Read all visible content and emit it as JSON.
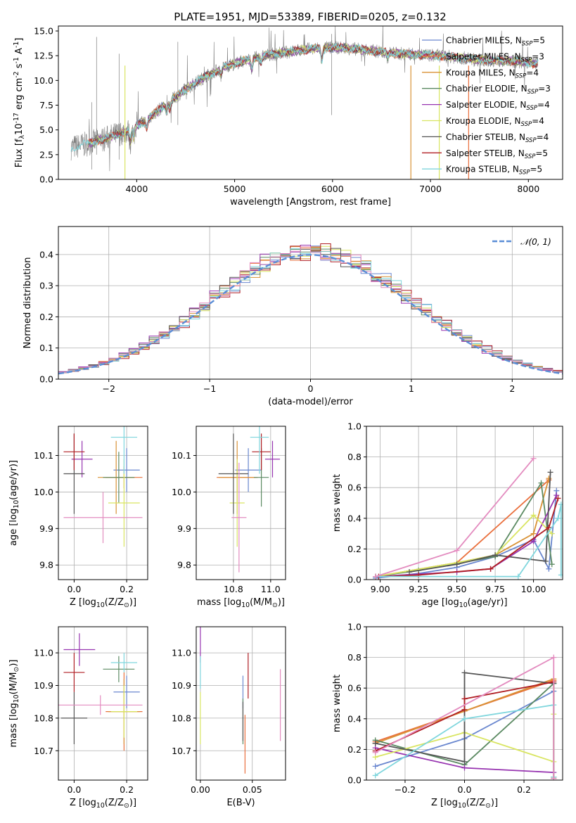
{
  "title": "PLATE=1951, MJD=53389, FIBERID=0205, z=0.132",
  "series": [
    {
      "name": "Chabrier MILES, N$_{SSP}$=5",
      "label": "Chabrier MILES, N",
      "ssp": "5",
      "color": "#6a87cf"
    },
    {
      "name": "Salpeter MILES, N$_{SSP}$=3",
      "label": "Salpeter MILES, N",
      "ssp": "3",
      "color": "#ea6f3c"
    },
    {
      "name": "Kroupa MILES, N$_{SSP}$=4",
      "label": "Kroupa MILES, N",
      "ssp": "4",
      "color": "#d99236"
    },
    {
      "name": "Chabrier ELODIE, N$_{SSP}$=3",
      "label": "Chabrier ELODIE, N",
      "ssp": "3",
      "color": "#5b8a62"
    },
    {
      "name": "Salpeter ELODIE, N$_{SSP}$=4",
      "label": "Salpeter ELODIE, N",
      "ssp": "4",
      "color": "#9734b0"
    },
    {
      "name": "Kroupa ELODIE, N$_{SSP}$=4",
      "label": "Kroupa ELODIE, N",
      "ssp": "4",
      "color": "#d9e562"
    },
    {
      "name": "Chabrier STELIB, N$_{SSP}$=4",
      "label": "Chabrier STELIB, N",
      "ssp": "4",
      "color": "#555555"
    },
    {
      "name": "Salpeter STELIB, N$_{SSP}$=5",
      "label": "Salpeter STELIB, N",
      "ssp": "5",
      "color": "#b01e23"
    },
    {
      "name": "Kroupa STELIB, N$_{SSP}$=5",
      "label": "Kroupa STELIB, N",
      "ssp": "5",
      "color": "#7fd6dd"
    }
  ],
  "extra_color": "#e38bbf",
  "chart_data": [
    {
      "type": "line",
      "panel": "spectrum",
      "xlabel": "wavelength [Angstrom, rest frame]",
      "ylabel": "Flux [f$_\\lambda$10$^{-17}$ erg cm$^{-2}$ s$^{-1}$ A$^{-1}$]",
      "xlim": [
        3200,
        8350
      ],
      "ylim": [
        0,
        15.5
      ],
      "xticks": [
        4000,
        5000,
        6000,
        7000,
        8000
      ],
      "yticks": [
        0,
        2.5,
        5,
        7.5,
        10,
        12.5,
        15
      ],
      "yticklabels": [
        "0.0",
        "2.5",
        "5.0",
        "7.5",
        "10.0",
        "12.5",
        "15.0"
      ],
      "continuum_x": [
        3330,
        3500,
        3700,
        3900,
        4100,
        4300,
        4500,
        4700,
        4900,
        5100,
        5300,
        5500,
        5700,
        5900,
        6100,
        6300,
        6500,
        6700,
        6900,
        7100,
        7300,
        7500,
        7700,
        7900,
        8100
      ],
      "continuum_y": [
        3.2,
        3.6,
        4.2,
        4.9,
        6.0,
        7.6,
        9.1,
        10.4,
        11.4,
        12.0,
        12.5,
        12.8,
        13.1,
        13.3,
        13.3,
        13.1,
        12.9,
        12.7,
        12.6,
        12.5,
        12.3,
        12.1,
        12.0,
        11.9,
        11.7
      ],
      "absorption_lines": [
        {
          "x": 3934,
          "depth": 1.5
        },
        {
          "x": 3969,
          "depth": 1.3
        },
        {
          "x": 4102,
          "depth": 0.9
        },
        {
          "x": 4305,
          "depth": 1.0
        },
        {
          "x": 4340,
          "depth": 0.8
        },
        {
          "x": 4861,
          "depth": 0.7
        },
        {
          "x": 5175,
          "depth": 1.2
        },
        {
          "x": 5270,
          "depth": 0.6
        },
        {
          "x": 5890,
          "depth": 1.4
        },
        {
          "x": 6563,
          "depth": 0.5
        }
      ]
    },
    {
      "type": "step",
      "panel": "residual-histogram",
      "xlabel": "(data-model)/error",
      "ylabel": "Normed distribution",
      "xlim": [
        -2.5,
        2.5
      ],
      "ylim": [
        0,
        0.49
      ],
      "xticks": [
        -2,
        -1,
        0,
        1,
        2
      ],
      "xticklabels": [
        "−2",
        "−1",
        "0",
        "1",
        "2"
      ],
      "yticks": [
        0,
        0.1,
        0.2,
        0.3,
        0.4
      ],
      "yticklabels": [
        "0.0",
        "0.1",
        "0.2",
        "0.3",
        "0.4"
      ],
      "bin_width": 0.1,
      "reference": {
        "name": "$\\mathcal{N}(0,1)$",
        "label": "𝒩(0, 1)",
        "mean": 0,
        "sigma": 1,
        "color": "#5b8ed6"
      }
    },
    {
      "type": "errorbar",
      "panel": "age-vs-Z",
      "xlabel": "Z [log$_{10}$(Z/Z$_\\odot$)]",
      "ylabel": "age  [log$_{10}$(age/yr)]",
      "xlim": [
        -0.06,
        0.28
      ],
      "ylim": [
        9.76,
        10.18
      ],
      "xticks": [
        0,
        0.2
      ],
      "xticklabels": [
        "0.0",
        "0.2"
      ],
      "yticks": [
        9.8,
        9.9,
        10.0,
        10.1
      ],
      "yticklabels": [
        "9.8",
        "9.9",
        "10.0",
        "10.1"
      ],
      "points": [
        {
          "s": 0,
          "x": 0.2,
          "xe": 0.05,
          "y": 10.06,
          "ye": 0.06
        },
        {
          "s": 1,
          "x": 0.19,
          "xe": 0.07,
          "y": 10.04,
          "ye": 0.03
        },
        {
          "s": 2,
          "x": 0.16,
          "xe": 0.07,
          "y": 10.04,
          "ye": 0.1
        },
        {
          "s": 3,
          "x": 0.17,
          "xe": 0.06,
          "y": 10.04,
          "ye": 0.07
        },
        {
          "s": 4,
          "x": 0.03,
          "xe": 0.04,
          "y": 10.09,
          "ye": 0.05
        },
        {
          "s": 5,
          "x": 0.19,
          "xe": 0.06,
          "y": 9.97,
          "ye": 0.12
        },
        {
          "s": 6,
          "x": 0.0,
          "xe": 0.04,
          "y": 10.05,
          "ye": 0.11
        },
        {
          "s": 7,
          "x": 0.0,
          "xe": 0.04,
          "y": 10.11,
          "ye": 0.05
        },
        {
          "s": 8,
          "x": 0.19,
          "xe": 0.05,
          "y": 10.15,
          "ye": 0.1
        },
        {
          "s": 9,
          "x": 0.11,
          "xe": 0.15,
          "y": 9.93,
          "ye": 0.07
        }
      ]
    },
    {
      "type": "errorbar",
      "panel": "age-vs-mass",
      "xlabel": "mass [log$_{10}$(M/M$_\\odot$)]",
      "ylabel": "",
      "xlim": [
        10.6,
        11.08
      ],
      "ylim": [
        9.76,
        10.18
      ],
      "xticks": [
        10.8,
        11.0
      ],
      "xticklabels": [
        "10.8",
        "11.0"
      ],
      "yticks": [
        9.8,
        9.9,
        10.0,
        10.1
      ],
      "yticklabels": [
        "9.8",
        "9.9",
        "10.0",
        "10.1"
      ],
      "points": [
        {
          "s": 0,
          "x": 10.88,
          "xe": 0.07,
          "y": 10.06,
          "ye": 0.06
        },
        {
          "s": 1,
          "x": 10.82,
          "xe": 0.11,
          "y": 10.04,
          "ye": 0.04
        },
        {
          "s": 2,
          "x": 10.82,
          "xe": 0.1,
          "y": 10.04,
          "ye": 0.1
        },
        {
          "s": 3,
          "x": 10.95,
          "xe": 0.04,
          "y": 10.04,
          "ye": 0.08
        },
        {
          "s": 4,
          "x": 11.01,
          "xe": 0.04,
          "y": 10.09,
          "ye": 0.05
        },
        {
          "s": 5,
          "x": 10.82,
          "xe": 0.04,
          "y": 9.97,
          "ye": 0.12
        },
        {
          "s": 6,
          "x": 10.8,
          "xe": 0.08,
          "y": 10.05,
          "ye": 0.11
        },
        {
          "s": 7,
          "x": 10.95,
          "xe": 0.05,
          "y": 10.11,
          "ye": 0.05
        },
        {
          "s": 8,
          "x": 10.94,
          "xe": 0.05,
          "y": 10.15,
          "ye": 0.1
        },
        {
          "s": 9,
          "x": 10.83,
          "xe": 0.04,
          "y": 9.93,
          "ye": 0.15
        }
      ]
    },
    {
      "type": "line",
      "panel": "mass-weight-vs-age",
      "xlabel": "age  [log$_{10}$(age/yr)]",
      "ylabel": "mass weight",
      "xlim": [
        8.91,
        10.19
      ],
      "ylim": [
        0,
        1.0
      ],
      "xticks": [
        9.0,
        9.25,
        9.5,
        9.75,
        10.0
      ],
      "xticklabels": [
        "9.00",
        "9.25",
        "9.50",
        "9.75",
        "10.00"
      ],
      "yticks": [
        0,
        0.2,
        0.4,
        0.6,
        0.8,
        1.0
      ],
      "yticklabels": [
        "0.0",
        "0.2",
        "0.4",
        "0.6",
        "0.8",
        "1.0"
      ],
      "lines": [
        {
          "s": 0,
          "x": [
            8.97,
            9.25,
            9.5,
            9.75,
            10.0,
            10.1,
            10.15
          ],
          "y": [
            0.01,
            0.04,
            0.08,
            0.15,
            0.26,
            0.07,
            0.58
          ]
        },
        {
          "s": 1,
          "x": [
            8.97,
            9.5,
            10.1
          ],
          "y": [
            0.02,
            0.11,
            0.65
          ]
        },
        {
          "s": 2,
          "x": [
            8.97,
            9.5,
            9.75,
            10.0,
            10.1
          ],
          "y": [
            0.02,
            0.11,
            0.16,
            0.3,
            0.66
          ]
        },
        {
          "s": 3,
          "x": [
            8.97,
            9.25,
            9.75,
            10.05,
            10.12
          ],
          "y": [
            0.02,
            0.06,
            0.15,
            0.63,
            0.1
          ]
        },
        {
          "s": 4,
          "x": [
            8.97,
            9.5,
            9.72,
            10.0,
            10.15
          ],
          "y": [
            0.02,
            0.05,
            0.07,
            0.25,
            0.55
          ]
        },
        {
          "s": 5,
          "x": [
            8.97,
            9.5,
            9.75,
            10.0,
            10.12
          ],
          "y": [
            0.02,
            0.11,
            0.16,
            0.42,
            0.3
          ]
        },
        {
          "s": 6,
          "x": [
            9.19,
            9.5,
            9.75,
            10.08,
            10.11
          ],
          "y": [
            0.05,
            0.1,
            0.16,
            0.12,
            0.7
          ]
        },
        {
          "s": 7,
          "x": [
            8.99,
            9.25,
            9.72,
            10.1,
            10.16
          ],
          "y": [
            0.02,
            0.03,
            0.07,
            0.34,
            0.53
          ]
        },
        {
          "s": 8,
          "x": [
            8.97,
            9.9,
            10.16,
            10.18,
            10.18
          ],
          "y": [
            0.02,
            0.02,
            0.4,
            0.49,
            0.03
          ]
        },
        {
          "s": 9,
          "x": [
            8.97,
            9.5,
            10.0
          ],
          "y": [
            0.02,
            0.19,
            0.79
          ]
        }
      ]
    },
    {
      "type": "errorbar",
      "panel": "mass-vs-Z",
      "xlabel": "Z [log$_{10}$(Z/Z$_\\odot$)]",
      "ylabel": "mass [log$_{10}$(M/M$_\\odot$)]",
      "xlim": [
        -0.06,
        0.28
      ],
      "ylim": [
        10.61,
        11.08
      ],
      "xticks": [
        0,
        0.2
      ],
      "xticklabels": [
        "0.0",
        "0.2"
      ],
      "yticks": [
        10.7,
        10.8,
        10.9,
        11.0
      ],
      "yticklabels": [
        "10.7",
        "10.8",
        "10.9",
        "11.0"
      ],
      "points": [
        {
          "s": 0,
          "x": 0.2,
          "xe": 0.05,
          "y": 10.88,
          "ye": 0.05
        },
        {
          "s": 1,
          "x": 0.19,
          "xe": 0.07,
          "y": 10.82,
          "ye": 0.12
        },
        {
          "s": 2,
          "x": 0.19,
          "xe": 0.06,
          "y": 10.82,
          "ye": 0.1
        },
        {
          "s": 3,
          "x": 0.17,
          "xe": 0.06,
          "y": 10.95,
          "ye": 0.04
        },
        {
          "s": 4,
          "x": 0.02,
          "xe": 0.06,
          "y": 11.01,
          "ye": 0.05
        },
        {
          "s": 5,
          "x": 0.19,
          "xe": 0.05,
          "y": 10.82,
          "ye": 0.08
        },
        {
          "s": 6,
          "x": 0.0,
          "xe": 0.05,
          "y": 10.8,
          "ye": 0.08
        },
        {
          "s": 7,
          "x": 0.0,
          "xe": 0.04,
          "y": 10.94,
          "ye": 0.06
        },
        {
          "s": 8,
          "x": 0.19,
          "xe": 0.05,
          "y": 10.97,
          "ye": 0.03
        },
        {
          "s": 9,
          "x": 0.1,
          "xe": 0.16,
          "y": 10.84,
          "ye": 0.03
        }
      ]
    },
    {
      "type": "errorbar",
      "panel": "mass-vs-EBV",
      "xlabel": "E(B-V)",
      "ylabel": "",
      "xlim": [
        -0.004,
        0.082
      ],
      "ylim": [
        10.61,
        11.08
      ],
      "xticks": [
        0,
        0.05
      ],
      "xticklabels": [
        "0.00",
        "0.05"
      ],
      "yticks": [
        10.7,
        10.8,
        10.9,
        11.0
      ],
      "yticklabels": [
        "10.7",
        "10.8",
        "10.9",
        "11.0"
      ],
      "points": [
        {
          "s": 0,
          "x": 0.041,
          "xe": 0,
          "y": 10.88,
          "ye": 0.05
        },
        {
          "s": 1,
          "x": 0.043,
          "xe": 0,
          "y": 10.72,
          "ye": 0.09
        },
        {
          "s": 3,
          "x": 0.041,
          "xe": 0,
          "y": 10.79,
          "ye": 0.07
        },
        {
          "s": 4,
          "x": 0.0,
          "xe": 0,
          "y": 11.06,
          "ye": 0.09
        },
        {
          "s": 5,
          "x": 0.0,
          "xe": 0,
          "y": 10.8,
          "ye": 0.08
        },
        {
          "s": 6,
          "x": 0.041,
          "xe": 0,
          "y": 10.79,
          "ye": 0.06
        },
        {
          "s": 7,
          "x": 0.046,
          "xe": 0,
          "y": 10.93,
          "ye": 0.07
        },
        {
          "s": 8,
          "x": 0.0,
          "xe": 0,
          "y": 10.94,
          "ye": 0.05
        },
        {
          "s": 9,
          "x": 0.077,
          "xe": 0,
          "y": 10.84,
          "ye": 0.11
        }
      ]
    },
    {
      "type": "line",
      "panel": "mass-weight-vs-Z",
      "xlabel": "Z [log$_{10}$(Z/Z$_\\odot$)]",
      "ylabel": "mass weight",
      "xlim": [
        -0.33,
        0.33
      ],
      "ylim": [
        0,
        1.0
      ],
      "xticks": [
        -0.2,
        0,
        0.2
      ],
      "xticklabels": [
        "−0.2",
        "0.0",
        "0.2"
      ],
      "yticks": [
        0,
        0.2,
        0.4,
        0.6,
        0.8,
        1.0
      ],
      "yticklabels": [
        "0.0",
        "0.2",
        "0.4",
        "0.6",
        "0.8",
        "1.0"
      ],
      "lines": [
        {
          "s": 0,
          "x": [
            -0.3,
            0.0,
            0.3,
            0.3
          ],
          "y": [
            0.09,
            0.27,
            0.58,
            0.02
          ]
        },
        {
          "s": 1,
          "x": [
            -0.3,
            0.3,
            0.3
          ],
          "y": [
            0.25,
            0.65,
            0.02
          ]
        },
        {
          "s": 2,
          "x": [
            -0.3,
            0.0,
            0.3,
            0.3
          ],
          "y": [
            0.24,
            0.45,
            0.66,
            0.01
          ]
        },
        {
          "s": 3,
          "x": [
            -0.3,
            0.0,
            0.3,
            0.3
          ],
          "y": [
            0.26,
            0.1,
            0.63,
            0.02
          ]
        },
        {
          "s": 4,
          "x": [
            -0.3,
            0.0,
            0.3
          ],
          "y": [
            0.21,
            0.08,
            0.05
          ]
        },
        {
          "s": 5,
          "x": [
            -0.3,
            0.0,
            0.3,
            0.3
          ],
          "y": [
            0.15,
            0.31,
            0.12,
            0.43
          ]
        },
        {
          "s": 6,
          "x": [
            -0.3,
            0.0,
            0.0,
            0.3
          ],
          "y": [
            0.24,
            0.12,
            0.7,
            0.63
          ]
        },
        {
          "s": 7,
          "x": [
            -0.3,
            0.0,
            0.0,
            0.3
          ],
          "y": [
            0.19,
            0.46,
            0.53,
            0.64
          ]
        },
        {
          "s": 8,
          "x": [
            -0.3,
            0.0,
            0.3,
            0.3
          ],
          "y": [
            0.03,
            0.4,
            0.49,
            0.02
          ]
        },
        {
          "s": 9,
          "x": [
            -0.3,
            0.3,
            0.3
          ],
          "y": [
            0.18,
            0.8,
            0.01
          ]
        }
      ]
    }
  ]
}
